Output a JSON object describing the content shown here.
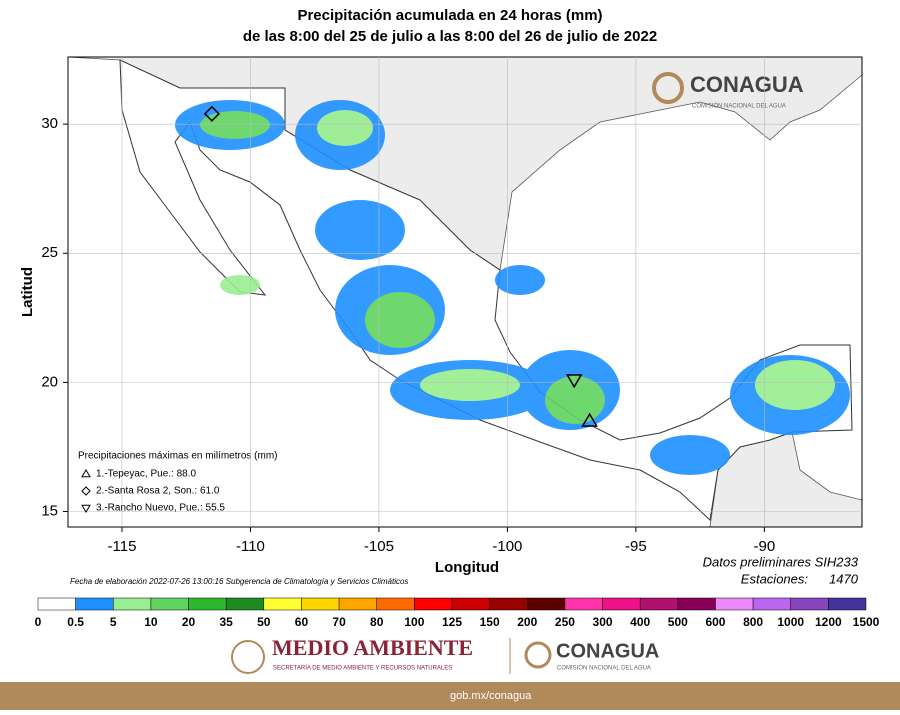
{
  "title": "Precipitación acumulada en 24 horas (mm)",
  "subtitle": "de las 8:00 del 25 de julio a las 8:00 del 26 de julio de 2022",
  "map": {
    "xlabel": "Longitud",
    "ylabel": "Latitud",
    "xlim": [
      -117.1,
      -86.2
    ],
    "ylim": [
      14.4,
      32.6
    ],
    "xticks": [
      -115,
      -110,
      -105,
      -100,
      -95,
      -90
    ],
    "yticks": [
      15,
      20,
      25,
      30
    ],
    "stations_title": "Precipitaciones máximas en milímetros (mm)",
    "stations": [
      {
        "label": "1.-Tepeyac, Pue.: 88.0",
        "marker": "triangle-up",
        "lon": -96.8,
        "lat": 18.5
      },
      {
        "label": "2.-Santa Rosa 2, Son.: 61.0",
        "marker": "diamond",
        "lon": -111.5,
        "lat": 30.4
      },
      {
        "label": "3.-Rancho Nuevo, Pue.: 55.5",
        "marker": "triangle-down",
        "lon": -97.4,
        "lat": 20.1
      }
    ],
    "colorbar": {
      "breaks": [
        0,
        0.5,
        5,
        10,
        20,
        35,
        50,
        60,
        70,
        80,
        100,
        125,
        150,
        200,
        250,
        300,
        400,
        500,
        600,
        800,
        1000,
        1200,
        1500
      ],
      "colors": [
        "#ffffff",
        "#1e90ff",
        "#98ee90",
        "#5fd35f",
        "#2eb82e",
        "#1f8a1f",
        "#ffff33",
        "#ffd500",
        "#ffa500",
        "#ff6a00",
        "#ff0000",
        "#cc0000",
        "#990000",
        "#5c0000",
        "#ff33aa",
        "#ee1188",
        "#b0106e",
        "#880055",
        "#ee88ff",
        "#bb66ee",
        "#8844bb",
        "#443399"
      ]
    }
  },
  "logo": {
    "name": "CONAGUA",
    "subtitle": "COMISIÓN NACIONAL DEL AGUA"
  },
  "data_note": "Datos preliminares SIH233",
  "stations_count_label": "Estaciones:",
  "stations_count": 1470,
  "footer_note": "Fecha de elaboración 2022-07-26 13:00:16 Subgerencia de Climatología y Servicios Climáticos",
  "banner": {
    "left_title": "MEDIO AMBIENTE",
    "left_subtitle": "SECRETARÍA DE MEDIO AMBIENTE Y RECURSOS NATURALES",
    "right_title": "CONAGUA",
    "right_subtitle": "COMISIÓN NACIONAL DEL AGUA",
    "url": "gob.mx/conagua"
  }
}
